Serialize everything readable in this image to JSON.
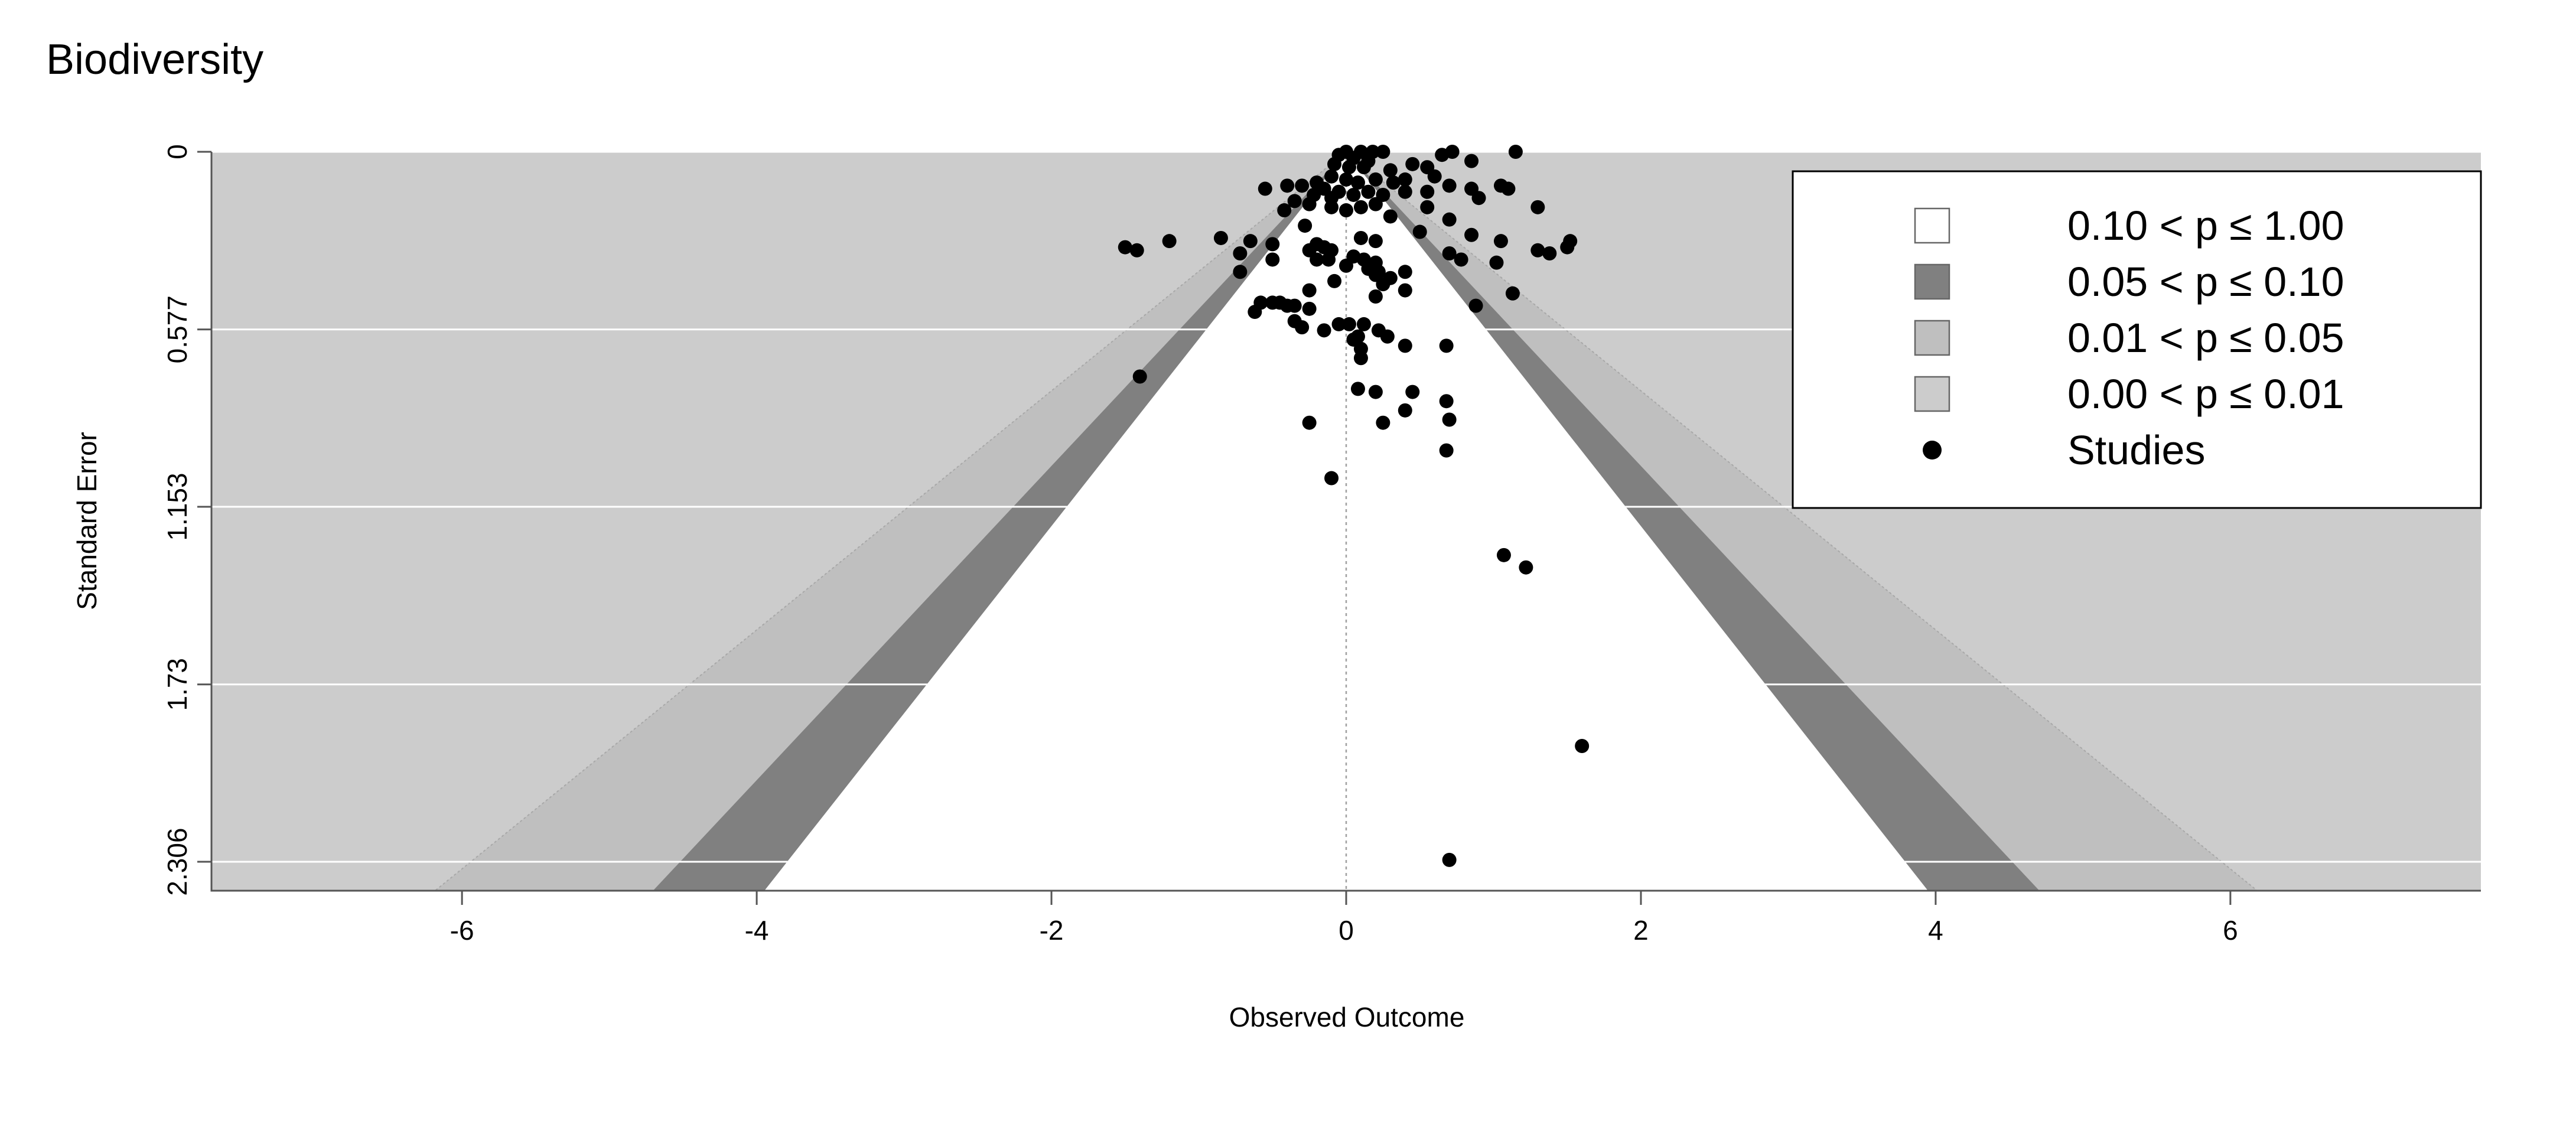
{
  "chart_data": {
    "type": "scatter",
    "subtype": "contour-enhanced funnel plot",
    "title": "Biodiversity",
    "xlabel": "Observed Outcome",
    "ylabel": "Standard Error",
    "xlim": [
      -7.7,
      7.7
    ],
    "ylim": [
      0,
      2.4
    ],
    "y_reversed": true,
    "x_ticks": [
      -6,
      -4,
      -2,
      0,
      2,
      4,
      6
    ],
    "y_ticks": [
      0,
      0.577,
      1.153,
      1.73,
      2.306
    ],
    "y_tick_labels": [
      "0",
      "0.577",
      "1.153",
      "1.73",
      "2.306"
    ],
    "grid": "horizontal white lines at y ticks",
    "reference_line_x": 0,
    "contour_levels": [
      {
        "label": "0.10 < p ≤ 1.00",
        "color": "#ffffff",
        "z": 1.645
      },
      {
        "label": "0.05 < p ≤ 0.10",
        "color": "#808080",
        "z": 1.96
      },
      {
        "label": "0.01 < p ≤ 0.05",
        "color": "#bfbfbf",
        "z": 2.576
      },
      {
        "label": "0.00 < p ≤ 0.01",
        "color": "#cccccc"
      }
    ],
    "background_color": "#cccccc",
    "legend": {
      "position": "top-right",
      "entries": [
        {
          "label": "0.10 < p ≤ 1.00",
          "symbol": "square",
          "color": "#ffffff"
        },
        {
          "label": "0.05 < p ≤ 0.10",
          "symbol": "square",
          "color": "#808080"
        },
        {
          "label": "0.01 < p ≤ 0.05",
          "symbol": "square",
          "color": "#bfbfbf"
        },
        {
          "label": "0.00 < p ≤ 0.01",
          "symbol": "square",
          "color": "#cccccc"
        },
        {
          "label": "Studies",
          "symbol": "circle",
          "color": "#000000"
        }
      ]
    },
    "series": [
      {
        "name": "Studies",
        "points": [
          [
            0.0,
            0.0
          ],
          [
            -0.05,
            0.01
          ],
          [
            0.1,
            0.0
          ],
          [
            0.18,
            0.0
          ],
          [
            0.25,
            0.0
          ],
          [
            0.05,
            0.02
          ],
          [
            0.15,
            0.03
          ],
          [
            -0.08,
            0.04
          ],
          [
            0.02,
            0.05
          ],
          [
            0.12,
            0.05
          ],
          [
            0.3,
            0.06
          ],
          [
            0.45,
            0.04
          ],
          [
            0.55,
            0.05
          ],
          [
            0.65,
            0.01
          ],
          [
            0.72,
            0.0
          ],
          [
            0.85,
            0.03
          ],
          [
            1.15,
            0.0
          ],
          [
            -0.1,
            0.08
          ],
          [
            0.0,
            0.09
          ],
          [
            0.08,
            0.1
          ],
          [
            0.2,
            0.09
          ],
          [
            0.32,
            0.1
          ],
          [
            0.4,
            0.09
          ],
          [
            -0.2,
            0.1
          ],
          [
            -0.3,
            0.11
          ],
          [
            0.6,
            0.08
          ],
          [
            0.7,
            0.11
          ],
          [
            0.85,
            0.12
          ],
          [
            1.05,
            0.11
          ],
          [
            1.1,
            0.12
          ],
          [
            -0.55,
            0.12
          ],
          [
            -0.4,
            0.11
          ],
          [
            -0.15,
            0.12
          ],
          [
            -0.05,
            0.13
          ],
          [
            0.05,
            0.14
          ],
          [
            0.15,
            0.13
          ],
          [
            0.25,
            0.14
          ],
          [
            0.4,
            0.13
          ],
          [
            0.55,
            0.13
          ],
          [
            -0.22,
            0.14
          ],
          [
            -0.1,
            0.15
          ],
          [
            0.9,
            0.15
          ],
          [
            -0.35,
            0.16
          ],
          [
            -0.25,
            0.17
          ],
          [
            -0.1,
            0.18
          ],
          [
            0.0,
            0.19
          ],
          [
            0.1,
            0.18
          ],
          [
            0.2,
            0.17
          ],
          [
            0.55,
            0.18
          ],
          [
            1.3,
            0.18
          ],
          [
            -0.42,
            0.19
          ],
          [
            0.3,
            0.21
          ],
          [
            0.7,
            0.22
          ],
          [
            -0.28,
            0.24
          ],
          [
            0.5,
            0.26
          ],
          [
            0.85,
            0.27
          ],
          [
            0.1,
            0.28
          ],
          [
            0.2,
            0.29
          ],
          [
            -0.85,
            0.28
          ],
          [
            -0.65,
            0.29
          ],
          [
            -0.5,
            0.3
          ],
          [
            -0.2,
            0.3
          ],
          [
            -0.15,
            0.31
          ],
          [
            1.05,
            0.29
          ],
          [
            1.52,
            0.29
          ],
          [
            -1.5,
            0.31
          ],
          [
            -1.42,
            0.32
          ],
          [
            -1.2,
            0.29
          ],
          [
            1.5,
            0.31
          ],
          [
            1.3,
            0.32
          ],
          [
            1.38,
            0.33
          ],
          [
            -0.25,
            0.32
          ],
          [
            -0.1,
            0.32
          ],
          [
            -0.72,
            0.33
          ],
          [
            -0.5,
            0.35
          ],
          [
            0.05,
            0.34
          ],
          [
            0.12,
            0.35
          ],
          [
            0.2,
            0.36
          ],
          [
            0.7,
            0.33
          ],
          [
            0.78,
            0.35
          ],
          [
            1.02,
            0.36
          ],
          [
            -0.2,
            0.35
          ],
          [
            -0.12,
            0.35
          ],
          [
            0.0,
            0.37
          ],
          [
            -0.72,
            0.39
          ],
          [
            0.15,
            0.38
          ],
          [
            0.22,
            0.39
          ],
          [
            0.3,
            0.41
          ],
          [
            0.4,
            0.39
          ],
          [
            -0.08,
            0.42
          ],
          [
            0.2,
            0.4
          ],
          [
            0.25,
            0.43
          ],
          [
            -0.25,
            0.45
          ],
          [
            1.13,
            0.46
          ],
          [
            0.4,
            0.45
          ],
          [
            0.2,
            0.47
          ],
          [
            -0.58,
            0.49
          ],
          [
            -0.5,
            0.49
          ],
          [
            -0.45,
            0.49
          ],
          [
            -0.4,
            0.5
          ],
          [
            -0.35,
            0.5
          ],
          [
            -0.25,
            0.51
          ],
          [
            -0.62,
            0.52
          ],
          [
            0.88,
            0.5
          ],
          [
            -0.3,
            0.57
          ],
          [
            -0.15,
            0.58
          ],
          [
            -0.05,
            0.56
          ],
          [
            0.02,
            0.56
          ],
          [
            0.12,
            0.56
          ],
          [
            0.22,
            0.58
          ],
          [
            0.28,
            0.6
          ],
          [
            -0.35,
            0.55
          ],
          [
            0.08,
            0.6
          ],
          [
            0.1,
            0.64
          ],
          [
            0.4,
            0.63
          ],
          [
            0.68,
            0.63
          ],
          [
            0.1,
            0.67
          ],
          [
            0.05,
            0.61
          ],
          [
            -1.4,
            0.73
          ],
          [
            0.08,
            0.77
          ],
          [
            0.2,
            0.78
          ],
          [
            0.45,
            0.78
          ],
          [
            0.68,
            0.81
          ],
          [
            0.4,
            0.84
          ],
          [
            -0.25,
            0.88
          ],
          [
            0.25,
            0.88
          ],
          [
            0.7,
            0.87
          ],
          [
            0.68,
            0.97
          ],
          [
            -0.1,
            1.06
          ],
          [
            1.07,
            1.31
          ],
          [
            1.22,
            1.35
          ],
          [
            1.6,
            1.93
          ],
          [
            0.7,
            2.3
          ]
        ]
      }
    ]
  }
}
